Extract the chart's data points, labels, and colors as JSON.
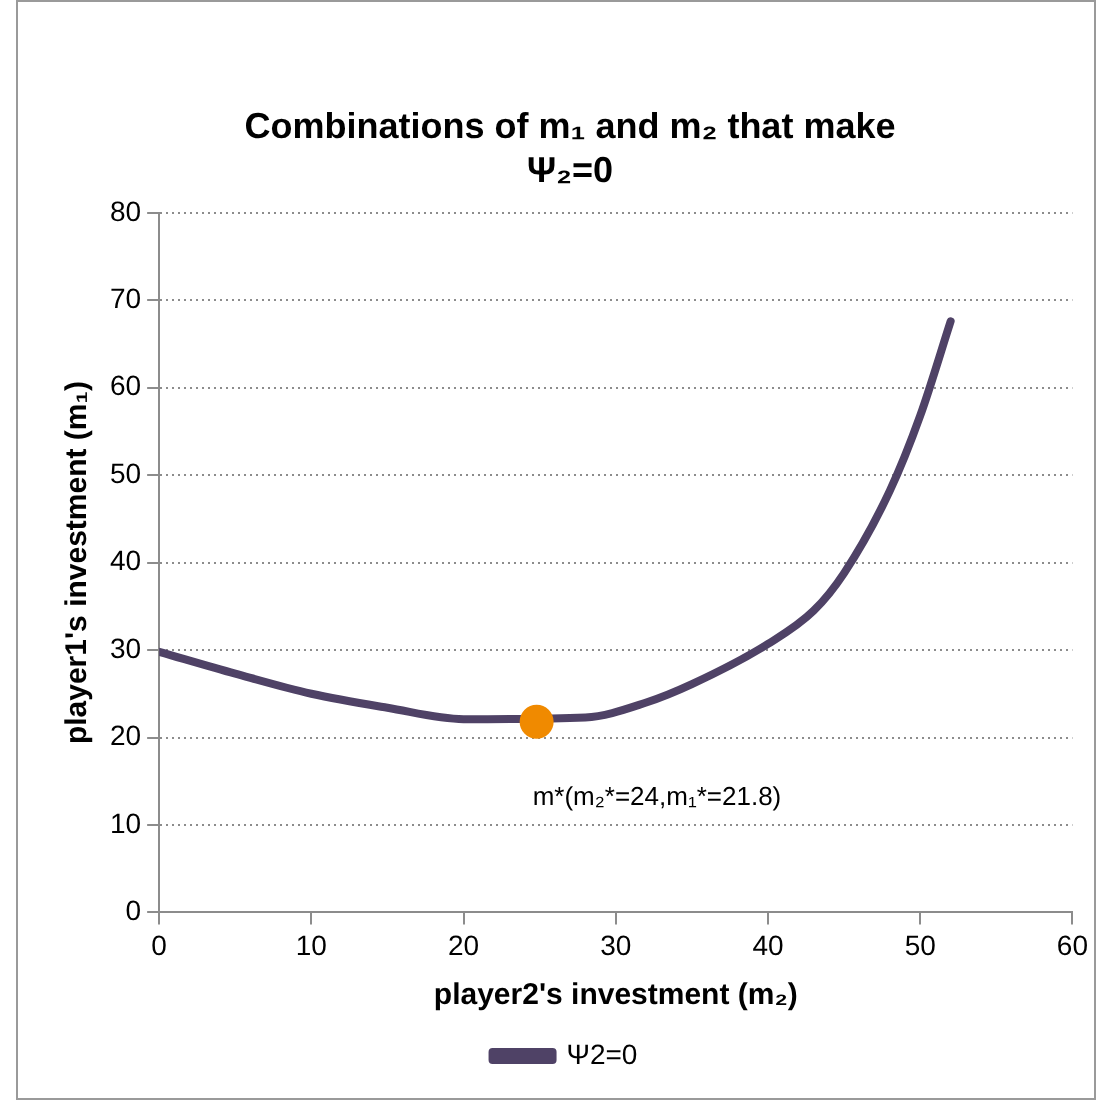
{
  "chart_data": {
    "type": "line",
    "title": "Combinations of m₁ and m₂ that make Ψ₂=0",
    "xlabel": "player2's investment (m₂)",
    "ylabel": "player1's investment (m₁)",
    "series": [
      {
        "name": "Ψ2=0",
        "color": "#4f4266",
        "x": [
          0,
          5,
          10,
          15,
          20,
          28,
          32,
          35,
          40,
          43,
          45,
          48,
          50,
          52
        ],
        "values": [
          29.8,
          27.3,
          25,
          23.4,
          22.1,
          22.3,
          24,
          26.1,
          30.7,
          34.5,
          38.8,
          48.2,
          56.8,
          67.6
        ]
      },
      {
        "type": "scatter",
        "color": "#f08a00",
        "x": [
          24.8
        ],
        "values": [
          21.8
        ]
      }
    ],
    "annotations": [
      {
        "text": "m*(m₂*=24,m₁*=21.8)",
        "x": 24.8,
        "y": 21.8
      }
    ],
    "xlim": [
      0,
      60
    ],
    "xticks": [
      0,
      10,
      20,
      30,
      40,
      50,
      60
    ],
    "ylim": [
      0,
      80
    ],
    "yticks": [
      0,
      10,
      20,
      30,
      40,
      50,
      60,
      70,
      80
    ],
    "grid": "y",
    "legend": "bottom"
  }
}
